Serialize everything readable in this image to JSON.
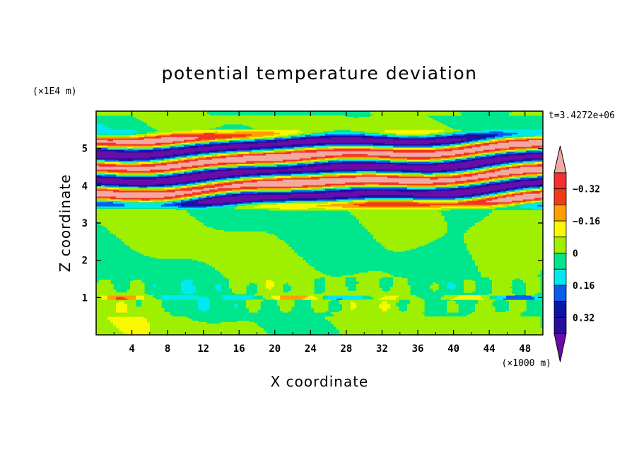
{
  "chart_data": {
    "type": "heatmap",
    "title": "potential temperature deviation",
    "xlabel": "X coordinate",
    "ylabel": "Z coordinate",
    "x_scale_note": "(×1000 m)",
    "y_scale_note": "(×1E4 m)",
    "time_label": "t=3.4272e+06",
    "xlim": [
      0,
      50
    ],
    "ylim": [
      0,
      6
    ],
    "xticks": [
      4,
      8,
      12,
      16,
      20,
      24,
      28,
      32,
      36,
      40,
      44,
      48
    ],
    "yticks": [
      1,
      2,
      3,
      4,
      5
    ],
    "colorbar": {
      "levels": [
        -0.4,
        -0.32,
        -0.24,
        -0.16,
        -0.08,
        0,
        0.08,
        0.16,
        0.24,
        0.32,
        0.4
      ],
      "labeled_levels": [
        -0.32,
        -0.16,
        0,
        0.16,
        0.32
      ],
      "tick_labels": [
        "0.32",
        "0.16",
        "0",
        "−0.16",
        "−0.32"
      ],
      "colors": [
        "#6a0da8",
        "#2a0d9e",
        "#0a14a6",
        "#0a5cf0",
        "#00e8f0",
        "#00e68c",
        "#9ef000",
        "#f8f800",
        "#ffa000",
        "#f03c14",
        "#f43030",
        "#f2aaa0"
      ],
      "extend": "both"
    },
    "field_description": {
      "lower_layer_z": [
        0,
        3.4
      ],
      "lower_layer_range": [
        -0.08,
        0.08
      ],
      "upper_layer_z": [
        3.4,
        5.5
      ],
      "upper_layer_range": [
        -0.4,
        0.4
      ],
      "thin_band_z": 1.0
    }
  }
}
